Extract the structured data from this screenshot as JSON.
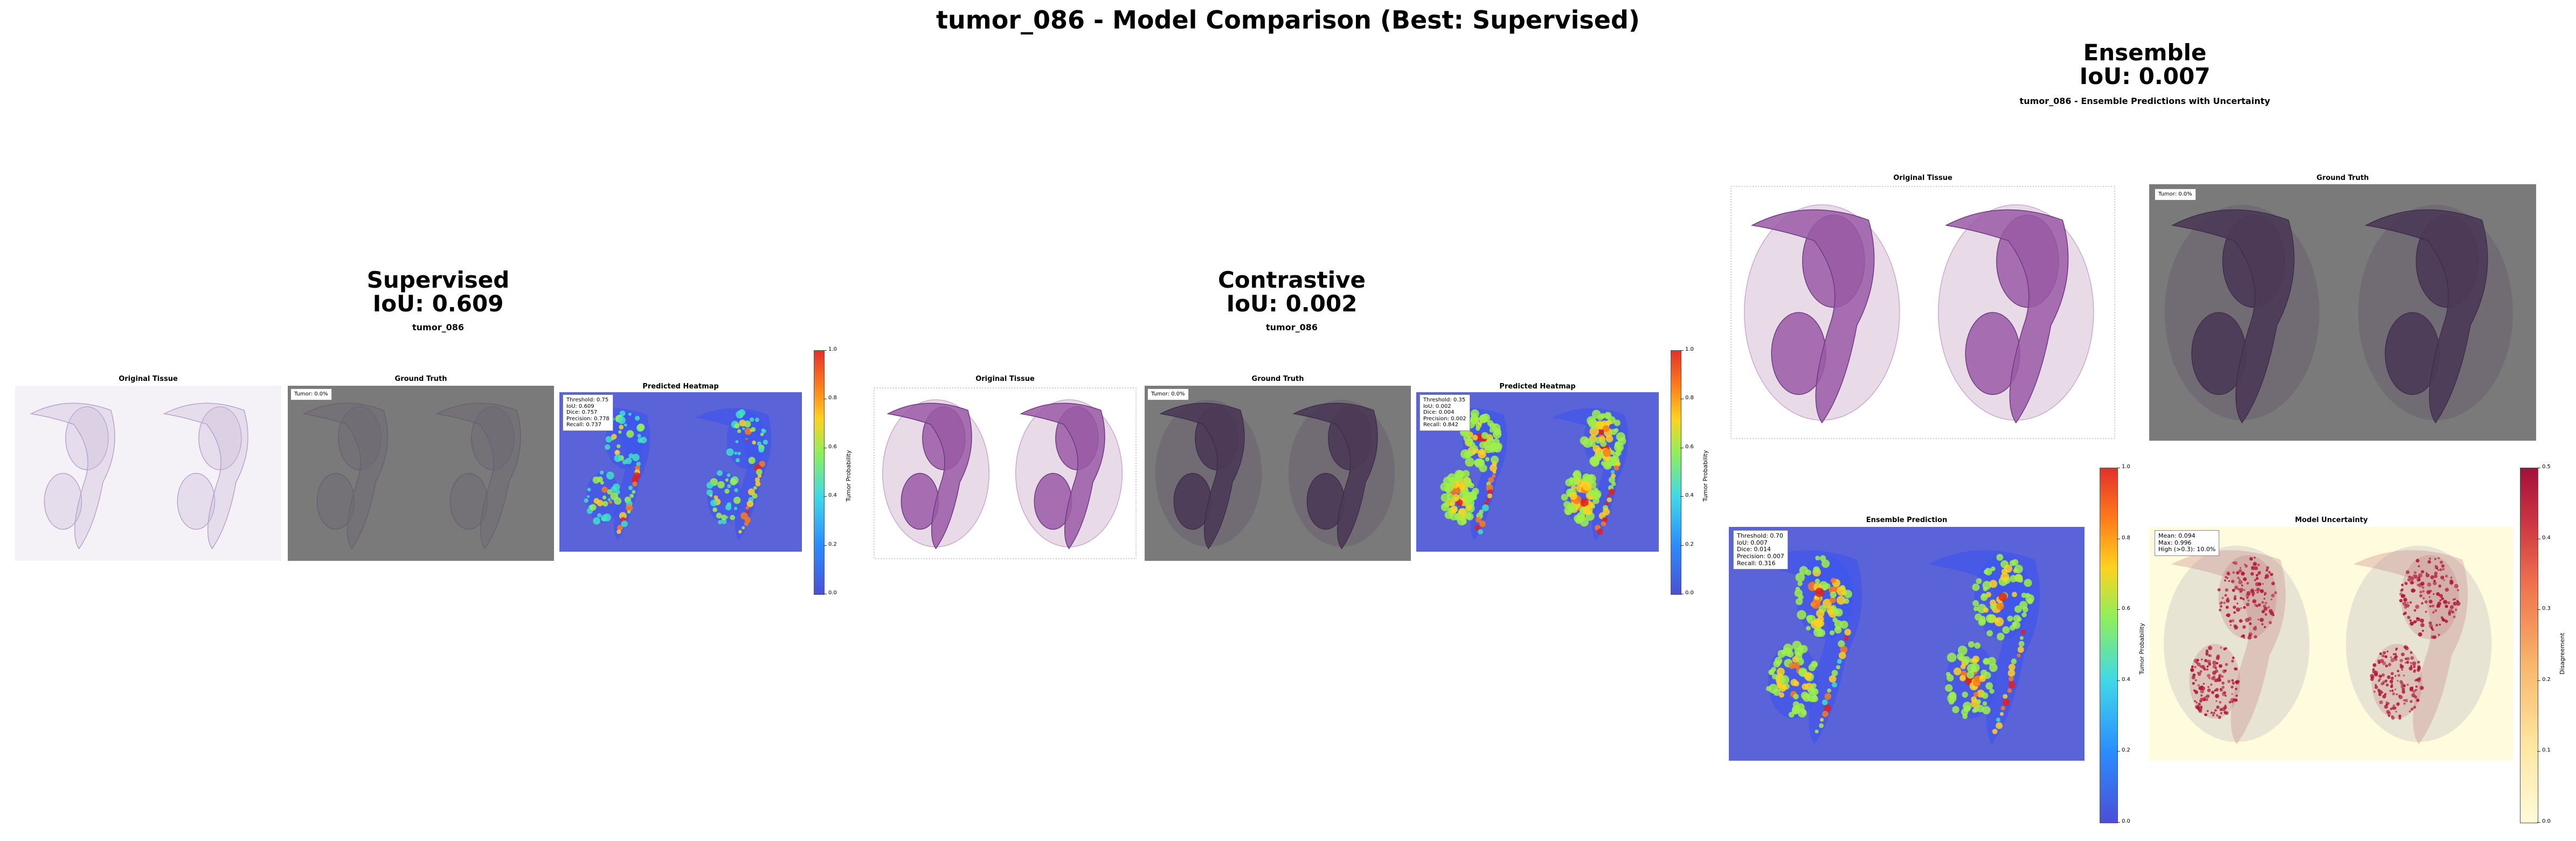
{
  "figure": {
    "title": "tumor_086 - Model Comparison (Best: Supervised)"
  },
  "models": [
    {
      "name": "Supervised",
      "iou_label": "IoU: 0.609",
      "subtitle": "tumor_086",
      "panels": [
        "Original Tissue",
        "Ground Truth",
        "Predicted Heatmap"
      ],
      "gt_badge": "Tumor: 0.0%",
      "metrics": [
        "Threshold: 0.75",
        "IoU: 0.609",
        "Dice: 0.757",
        "Precision: 0.778",
        "Recall: 0.737"
      ],
      "colorbar": {
        "label": "Tumor Probability",
        "ticks": [
          "1.0",
          "0.8",
          "0.6",
          "0.4",
          "0.2",
          "0.0"
        ]
      }
    },
    {
      "name": "Contrastive",
      "iou_label": "IoU: 0.002",
      "subtitle": "tumor_086",
      "panels": [
        "Original Tissue",
        "Ground Truth",
        "Predicted Heatmap"
      ],
      "gt_badge": "Tumor: 0.0%",
      "metrics": [
        "Threshold: 0.35",
        "IoU: 0.002",
        "Dice: 0.004",
        "Precision: 0.002",
        "Recall: 0.842"
      ],
      "colorbar": {
        "label": "Tumor Probability",
        "ticks": [
          "1.0",
          "0.8",
          "0.6",
          "0.4",
          "0.2",
          "0.0"
        ]
      }
    },
    {
      "name": "Ensemble",
      "iou_label": "IoU: 0.007",
      "subtitle": "tumor_086 - Ensemble Predictions with Uncertainty",
      "panels": [
        "Original Tissue",
        "Ground Truth",
        "Ensemble Prediction",
        "Model Uncertainty"
      ],
      "gt_badge": "Tumor: 0.0%",
      "metrics": [
        "Threshold: 0.70",
        "IoU: 0.007",
        "Dice: 0.014",
        "Precision: 0.007",
        "Recall: 0.316"
      ],
      "uncertainty_stats": [
        "Mean: 0.094",
        "Max: 0.996",
        "High (>0.3): 10.0%"
      ],
      "colorbar": {
        "label": "Tumor Probability",
        "ticks": [
          "1.0",
          "0.8",
          "0.6",
          "0.4",
          "0.2",
          "0.0"
        ]
      },
      "uncertainty_colorbar": {
        "label": "Disagreement",
        "ticks": [
          "0.5",
          "0.4",
          "0.3",
          "0.2",
          "0.1",
          "0.0"
        ]
      }
    }
  ],
  "colors": {
    "tissue": "#9a5ba6",
    "tissue_dark": "#6b3a80",
    "gray_bg": "#7a7a7a",
    "heat_bg": "#5b63d8",
    "uncert_bg": "#fffbdc",
    "uncert_hot": "#b0153a"
  },
  "icons": {
    "tissue": "tissue-slide-image",
    "heatmap": "probability-heatmap-image",
    "uncertainty": "uncertainty-map-image"
  }
}
